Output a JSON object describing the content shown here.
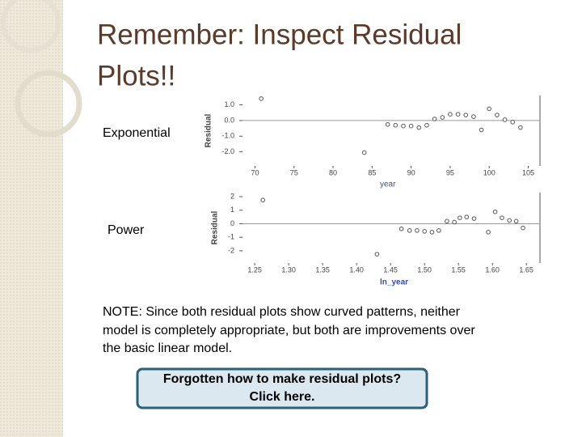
{
  "slide": {
    "title_lines": [
      "Remember:  Inspect Residual",
      "Plots!!"
    ],
    "labels": [
      "Exponential",
      "Power"
    ],
    "note_lines": [
      "NOTE:  Since both residual plots show curved patterns, neither",
      "model is completely appropriate, but both are improvements over",
      "the basic linear model."
    ],
    "button_lines": [
      "Forgotten how to make residual plots?",
      "Click here."
    ]
  },
  "chart_data": [
    {
      "type": "scatter",
      "ylabel": "Residual",
      "xlabel": "year",
      "marker_color": "#555555",
      "zero_line": true,
      "xlim": [
        68.4,
        106.5
      ],
      "ylim": [
        -2.9,
        1.6
      ],
      "xticks": [
        70,
        75,
        80,
        85,
        90,
        95,
        100,
        105
      ],
      "yticks": [
        {
          "value": 1,
          "label": "1.0"
        },
        {
          "value": 0,
          "label": "0.0"
        },
        {
          "value": -1,
          "label": "-1.0"
        },
        {
          "value": -2,
          "label": "-2.0"
        }
      ],
      "x": [
        70.8,
        84,
        87,
        88,
        89,
        90,
        91,
        92,
        93,
        94,
        95,
        96,
        97,
        98,
        99,
        100,
        101,
        102,
        103,
        104
      ],
      "values": [
        1.4,
        -2.05,
        -0.25,
        -0.3,
        -0.35,
        -0.35,
        -0.45,
        -0.3,
        0.1,
        0.2,
        0.4,
        0.4,
        0.35,
        0.25,
        -0.6,
        0.75,
        0.35,
        0.05,
        -0.1,
        -0.45
      ]
    },
    {
      "type": "scatter",
      "ylabel": "Residual",
      "xlabel": "ln_year",
      "marker_color": "#555555",
      "zero_line": true,
      "xlim": [
        1.232,
        1.67
      ],
      "ylim": [
        -2.9,
        2.3
      ],
      "xticks": [
        {
          "value": 1.25,
          "label": "1.25"
        },
        {
          "value": 1.3,
          "label": "1.30"
        },
        {
          "value": 1.35,
          "label": "1.35"
        },
        {
          "value": 1.4,
          "label": "1.40"
        },
        {
          "value": 1.45,
          "label": "1.45"
        },
        {
          "value": 1.5,
          "label": "1.50"
        },
        {
          "value": 1.55,
          "label": "1.55"
        },
        {
          "value": 1.6,
          "label": "1.60"
        },
        {
          "value": 1.65,
          "label": "1.65"
        }
      ],
      "yticks": [
        2,
        1,
        0,
        -1,
        -2
      ],
      "x": [
        1.262,
        1.43,
        1.466,
        1.478,
        1.489,
        1.5,
        1.511,
        1.521,
        1.533,
        1.544,
        1.552,
        1.562,
        1.573,
        1.594,
        1.604,
        1.614,
        1.625,
        1.635,
        1.645
      ],
      "values": [
        1.75,
        -2.25,
        -0.375,
        -0.5,
        -0.5,
        -0.56,
        -0.62,
        -0.5,
        0.19,
        0.12,
        0.44,
        0.5,
        0.38,
        -0.62,
        0.88,
        0.44,
        0.25,
        0.19,
        -0.31
      ]
    }
  ]
}
